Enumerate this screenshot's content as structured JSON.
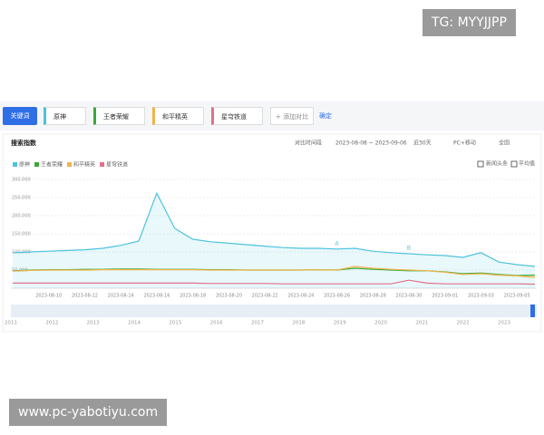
{
  "watermark_top": "TG: MYYJJPP",
  "watermark_bottom": "www.pc-yabotiyu.com",
  "toolbar": {
    "button": "关键词",
    "keywords": [
      "原神",
      "王者荣耀",
      "和平精英",
      "星穹铁道"
    ],
    "add": "+ 添加对比",
    "confirm": "确定"
  },
  "panel": {
    "title": "搜索指数",
    "compare": "对比时间段",
    "range": "2023-08-08 ~ 2023-09-06",
    "period": "近30天",
    "device": "PC+移动",
    "region": "全国",
    "news": "新闻头条",
    "average": "平均值"
  },
  "timeline": {
    "years": [
      "2011",
      "2012",
      "2013",
      "2014",
      "2015",
      "2016",
      "2017",
      "2018",
      "2019",
      "2020",
      "2021",
      "2022",
      "2023"
    ]
  },
  "chart_data": {
    "type": "line",
    "categories": [
      null,
      null,
      "2023-08-10",
      null,
      "2023-08-12",
      null,
      "2023-08-14",
      null,
      "2023-08-16",
      null,
      "2023-08-18",
      null,
      "2023-08-20",
      null,
      "2023-08-22",
      null,
      "2023-08-24",
      null,
      "2023-08-26",
      null,
      "2023-08-28",
      null,
      "2023-08-30",
      null,
      "2023-09-01",
      null,
      "2023-09-03",
      null,
      "2023-09-05",
      null
    ],
    "series": [
      {
        "name": "原神",
        "color": "#4dc3dd",
        "values": [
          98000,
          100000,
          102000,
          104000,
          106000,
          110000,
          118000,
          130000,
          262000,
          165000,
          135000,
          128000,
          124000,
          120000,
          116000,
          112000,
          110000,
          110000,
          108000,
          110000,
          102000,
          98000,
          95000,
          92000,
          90000,
          85000,
          98000,
          72000,
          65000,
          60000
        ]
      },
      {
        "name": "王者荣耀",
        "color": "#3aa83a",
        "values": [
          48000,
          50000,
          51000,
          51000,
          52000,
          52000,
          53000,
          53000,
          52000,
          52000,
          52000,
          51000,
          51000,
          50000,
          50000,
          50000,
          50000,
          51000,
          50000,
          55000,
          52000,
          50000,
          48000,
          48000,
          45000,
          40000,
          42000,
          38000,
          35000,
          36000
        ]
      },
      {
        "name": "和平精英",
        "color": "#f0b44a",
        "values": [
          47000,
          49000,
          50000,
          50000,
          50000,
          51000,
          51000,
          51000,
          51000,
          51000,
          51000,
          50000,
          50000,
          50000,
          50000,
          50000,
          50000,
          51000,
          50000,
          60000,
          55000,
          52000,
          50000,
          48000,
          44000,
          38000,
          40000,
          36000,
          34000,
          30000
        ]
      },
      {
        "name": "星穹铁道",
        "color": "#e0708a",
        "values": [
          14000,
          14000,
          14000,
          14000,
          14000,
          14000,
          14000,
          14000,
          14000,
          14000,
          14000,
          13000,
          13000,
          13000,
          13000,
          12000,
          12000,
          12000,
          12000,
          12000,
          12000,
          12000,
          22000,
          14000,
          12000,
          12000,
          12000,
          12000,
          12000,
          11000
        ]
      }
    ],
    "ylim": [
      0,
      300000
    ],
    "yticks": [
      {
        "value": 50000,
        "label": "50,000"
      },
      {
        "value": 100000,
        "label": "100,000"
      },
      {
        "value": 150000,
        "label": "150,000"
      },
      {
        "value": 200000,
        "label": "200,000"
      },
      {
        "value": 250000,
        "label": "250,000"
      },
      {
        "value": 300000,
        "label": "300,000"
      }
    ],
    "grid": true,
    "annotations": [
      {
        "text": "A",
        "category": "2023-08-26"
      },
      {
        "text": "B",
        "category": "2023-08-30"
      }
    ]
  }
}
